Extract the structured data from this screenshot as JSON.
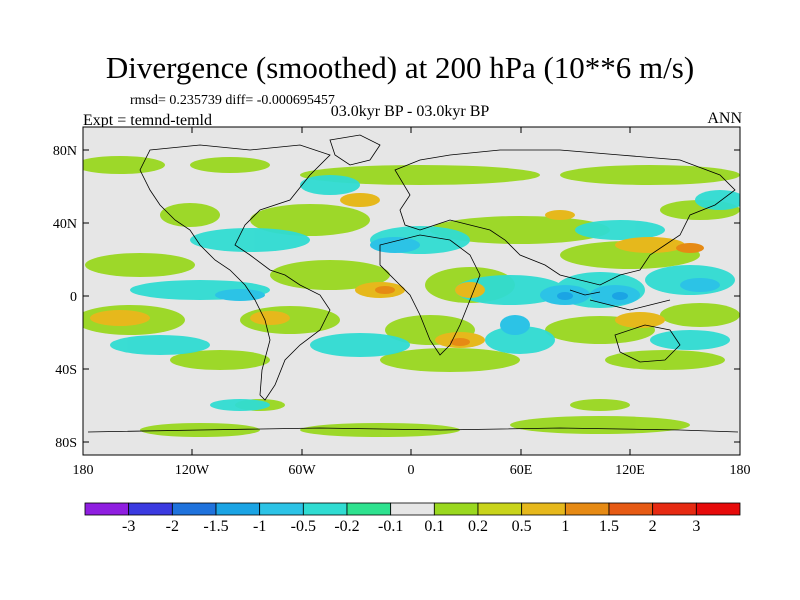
{
  "title": "Divergence (smoothed) at 200 hPa (10**6 m/s)",
  "stats": "rmsd= 0.235739 diff= -0.000695457",
  "experiment": "Expt = temnd-temld",
  "period": "03.0kyr BP - 03.0kyr BP",
  "season": "ANN",
  "y_axis": {
    "labels": [
      "80N",
      "40N",
      "0",
      "40S",
      "80S"
    ]
  },
  "x_axis": {
    "labels": [
      "180",
      "120W",
      "60W",
      "0",
      "60E",
      "120E",
      "180"
    ]
  },
  "colorbar": {
    "labels": [
      "-3",
      "-2",
      "-1.5",
      "-1",
      "-0.5",
      "-0.2",
      "-0.1",
      "0.1",
      "0.2",
      "0.5",
      "1",
      "1.5",
      "2",
      "3"
    ],
    "colors": [
      "#8f1ee0",
      "#3b3ae0",
      "#1f72dc",
      "#1ba4e4",
      "#2cc3e6",
      "#30dcd2",
      "#2ee28f",
      "#e6e6e6",
      "#9ad81f",
      "#c9d41b",
      "#e6b81c",
      "#e68a14",
      "#e65a14",
      "#e62a12",
      "#e60a0a"
    ]
  },
  "colors": {
    "land_background": "#e6e6e6",
    "coast": "#000000"
  }
}
